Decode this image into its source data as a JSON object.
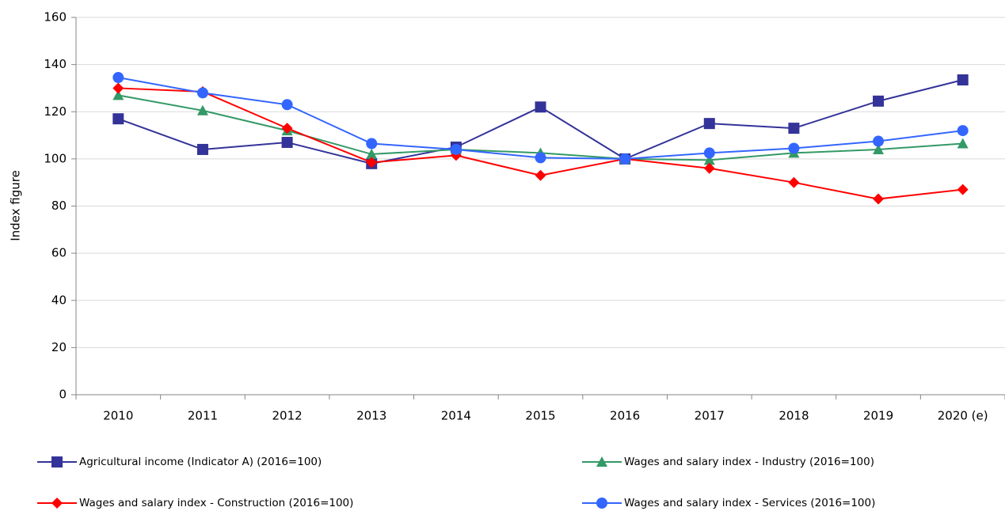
{
  "chart_data": {
    "type": "line",
    "ylabel": "Index figure",
    "categories": [
      "2010",
      "2011",
      "2012",
      "2013",
      "2014",
      "2015",
      "2016",
      "2017",
      "2018",
      "2019",
      "2020 (e)"
    ],
    "series": [
      {
        "name": "Agricultural income (Indicator A) (2016=100)",
        "color": "#333399",
        "marker": "square",
        "values": [
          117,
          104,
          107,
          98,
          105,
          122,
          100,
          115,
          113,
          124.5,
          133.5
        ]
      },
      {
        "name": "Wages and salary index - Industry (2016=100)",
        "color": "#339966",
        "marker": "triangle",
        "values": [
          127,
          120.5,
          112,
          102,
          104,
          102.5,
          100,
          99.5,
          102.5,
          104,
          106.5
        ]
      },
      {
        "name": "Wages and salary index - Construction (2016=100)",
        "color": "#ff0000",
        "marker": "diamond",
        "values": [
          130,
          128.5,
          113,
          98.5,
          101.5,
          93,
          100,
          96,
          90,
          83,
          87
        ]
      },
      {
        "name": "Wages and salary index - Services (2016=100)",
        "color": "#3366ff",
        "marker": "circle",
        "values": [
          134.5,
          128,
          123,
          106.5,
          104,
          100.5,
          100,
          102.5,
          104.5,
          107.5,
          112
        ]
      }
    ],
    "ylim": [
      0,
      160
    ],
    "yticks": [
      0,
      20,
      40,
      60,
      80,
      100,
      120,
      140,
      160
    ],
    "grid": true
  }
}
